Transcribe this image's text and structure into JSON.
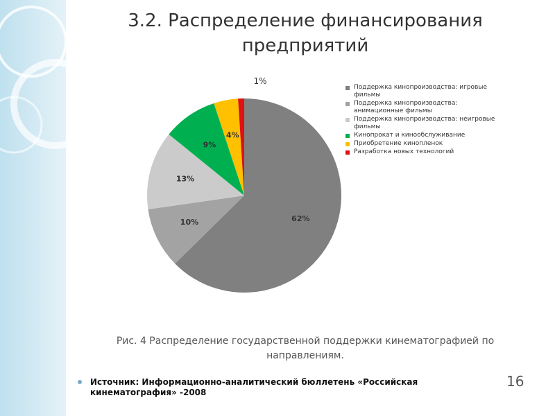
{
  "chart_data": {
    "type": "pie",
    "title": "3.2. Распределение финансирования предприятий",
    "caption": "Рис. 4 Распределение государственной поддержки кинематографией по направлениям.",
    "series": [
      {
        "name": "Поддержка кинопроизводства: игровые фильмы",
        "color": "#808080",
        "values": [
          62
        ],
        "value_labels": [
          "62%"
        ]
      },
      {
        "name": "Поддержка кинопроизводства: анимационные фильмы",
        "color": "#a3a3a3",
        "values": [
          10
        ],
        "value_labels": [
          "10%"
        ]
      },
      {
        "name": "Поддержка кинопроизводства: неигровые фильмы",
        "color": "#cbcbcb",
        "values": [
          13
        ],
        "value_labels": [
          "13%"
        ]
      },
      {
        "name": "Кинопрокат и кинообслуживание",
        "color": "#00b050",
        "values": [
          9
        ],
        "value_labels": [
          "9%"
        ]
      },
      {
        "name": "Приобретение кинопленок",
        "color": "#ffc000",
        "values": [
          4
        ],
        "value_labels": [
          "4%"
        ]
      },
      {
        "name": "Разработка новых технологий",
        "color": "#e01010",
        "values": [
          1
        ],
        "value_labels": [
          "1%"
        ]
      }
    ],
    "legend": "right"
  },
  "source": "Источник: Информационно-аналитический бюллетень «Российская кинематография» -2008",
  "page_number": "16"
}
